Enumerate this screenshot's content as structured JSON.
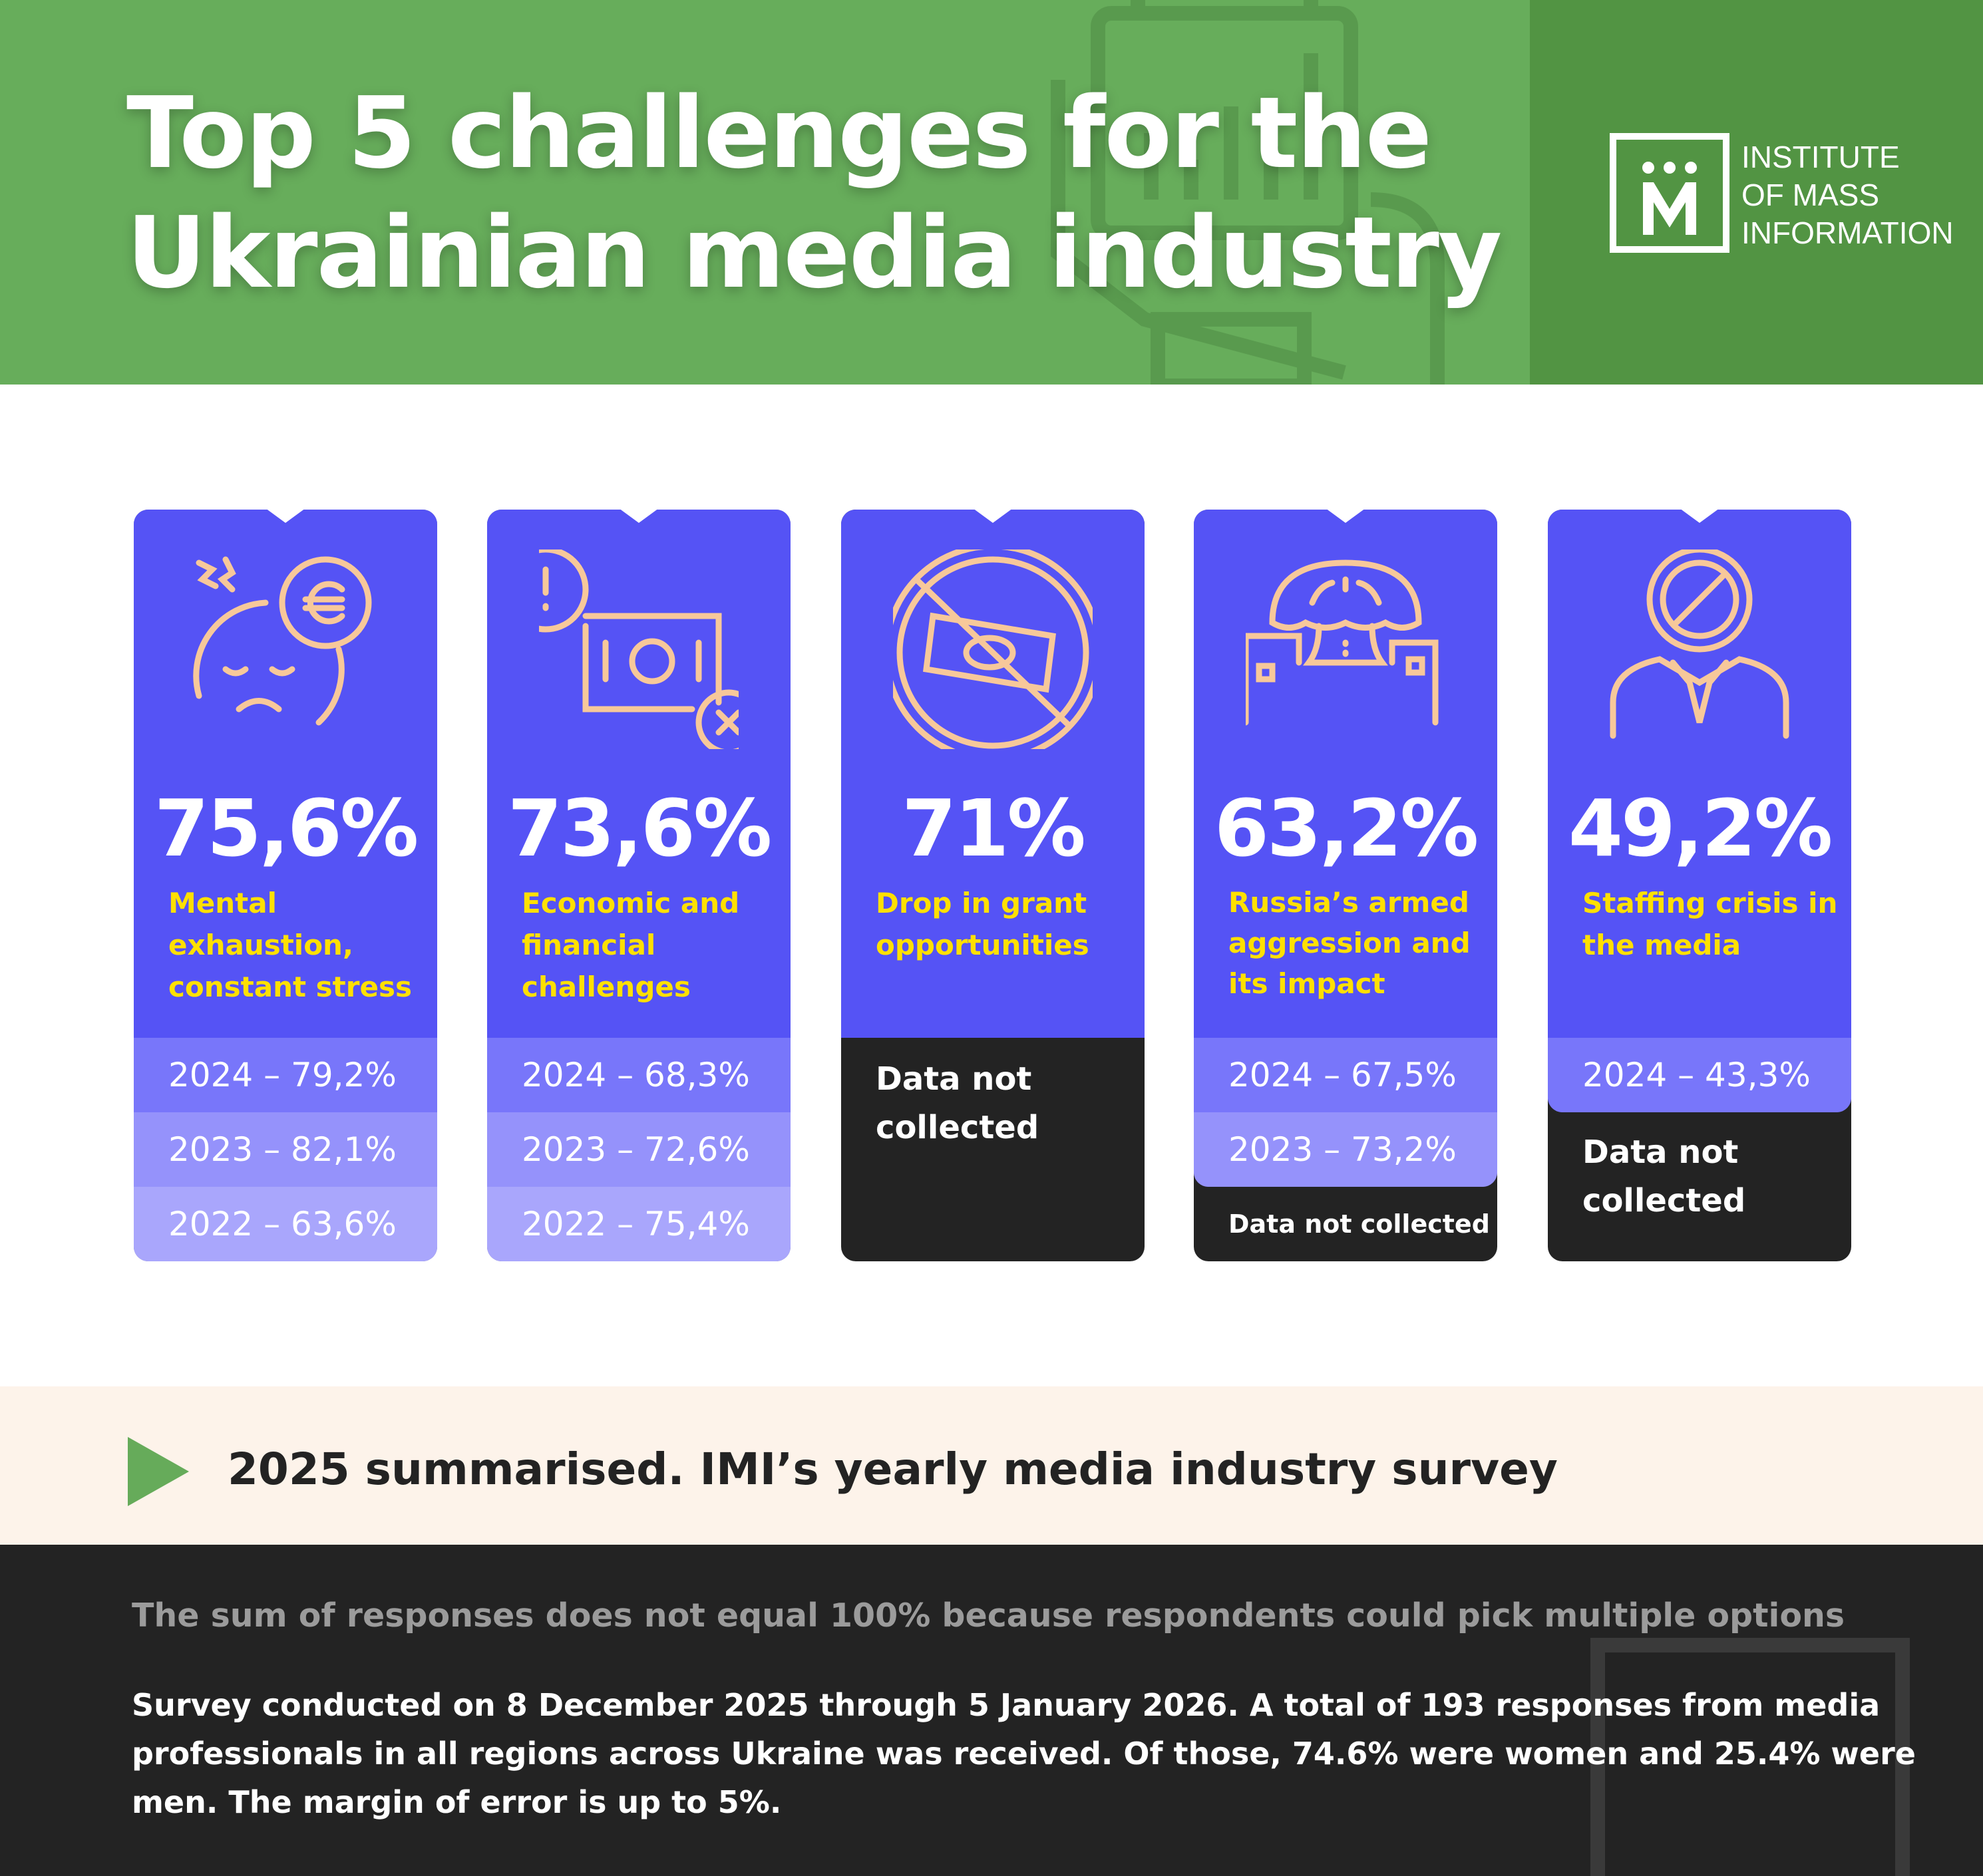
{
  "header": {
    "title_line1": "Top 5 challenges for the",
    "title_line2": "Ukrainian media industry",
    "logo": {
      "mark": "M",
      "line1": "INSTITUTE",
      "line2": "OF MASS",
      "line3": "INFORMATION"
    }
  },
  "colors": {
    "green": "#67ad5b",
    "dark_green": "#529443",
    "card": "#5553f5",
    "yellow": "#ffe000",
    "dark": "#232323",
    "icon": "#f7c89a"
  },
  "cards": [
    {
      "icon": "stress-face-icon",
      "percent": "75,6%",
      "label": "Mental exhaustion, constant stress",
      "history": [
        "2024 – 79,2%",
        "2023 – 82,1%",
        "2022 – 63,6%"
      ]
    },
    {
      "icon": "money-warning-icon",
      "percent": "73,6%",
      "label": "Economic and financial challenges",
      "history": [
        "2024 – 68,3%",
        "2023 – 72,6%",
        "2022 – 75,4%"
      ]
    },
    {
      "icon": "no-money-icon",
      "percent": "71%",
      "label": "Drop in grant opportunities",
      "no_data": "Data not collected"
    },
    {
      "icon": "explosion-city-icon",
      "percent": "63,2%",
      "label": "Russia’s armed aggression and its impact",
      "history": [
        "2024 – 67,5%",
        "2023 – 73,2%"
      ],
      "no_data": "Data not collected"
    },
    {
      "icon": "no-staff-icon",
      "percent": "49,2%",
      "label": "Staffing crisis in the media",
      "history": [
        "2024 – 43,3%"
      ],
      "no_data": "Data not collected"
    }
  ],
  "band": {
    "text": "2025 summarised. IMI’s yearly media industry survey"
  },
  "footer": {
    "note": "The sum of responses does not equal 100% because respondents could pick multiple options",
    "body": "Survey conducted on 8 December 2025 through 5 January 2026. A total of 193 responses from media professionals in all regions across Ukraine was received. Of those, 74.6% were women and 25.4% were men. The margin of error is up to 5%."
  }
}
